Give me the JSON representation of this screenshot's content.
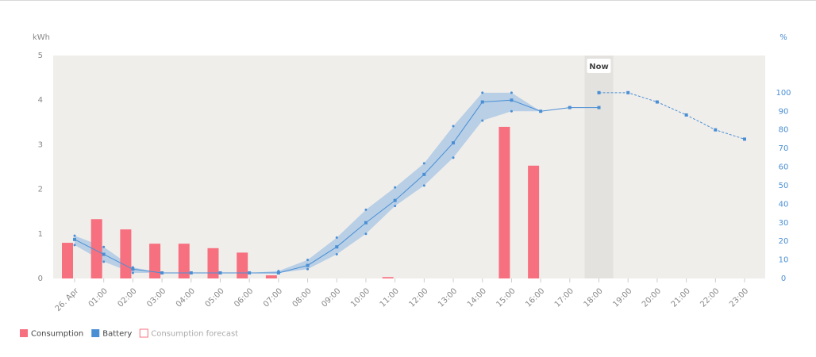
{
  "chart_data": {
    "type": "bar",
    "y_label": "kWh",
    "y2_label": "%",
    "annotation": "Now",
    "now_category": 18,
    "categories": [
      "26. Apr",
      "01:00",
      "02:00",
      "03:00",
      "04:00",
      "05:00",
      "06:00",
      "07:00",
      "08:00",
      "09:00",
      "10:00",
      "11:00",
      "12:00",
      "13:00",
      "14:00",
      "15:00",
      "16:00",
      "17:00",
      "18:00",
      "19:00",
      "20:00",
      "21:00",
      "22:00",
      "23:00"
    ],
    "series": [
      {
        "name": "Consumption",
        "color": "#f7707f",
        "type": "bar",
        "values": [
          0.8,
          1.33,
          1.1,
          0.78,
          0.78,
          0.68,
          0.58,
          0.07,
          null,
          null,
          null,
          0.03,
          null,
          null,
          null,
          3.4,
          2.53,
          null,
          null,
          null,
          null,
          null,
          null,
          null
        ]
      },
      {
        "name": "Battery",
        "color": "#4a8fd4",
        "type": "line",
        "axis": "y2",
        "values": [
          21,
          13,
          5,
          3,
          3,
          3,
          3,
          3,
          7,
          17,
          30,
          42,
          56,
          73,
          95,
          96,
          90,
          92,
          92,
          null,
          null,
          null,
          null,
          null
        ]
      },
      {
        "name": "Consumption forecast",
        "color": "#f7707f",
        "type": "hollow-bar",
        "values": [
          null,
          null,
          null,
          null,
          null,
          null,
          null,
          null,
          null,
          null,
          null,
          null,
          null,
          null,
          null,
          null,
          null,
          null,
          null,
          null,
          null,
          null,
          null,
          null
        ]
      }
    ],
    "battery_range": {
      "color": "#b8cfe6",
      "upper": [
        23,
        17,
        6,
        3,
        3,
        3,
        3,
        4,
        10,
        22,
        37,
        49,
        62,
        82,
        100,
        100,
        90,
        92
      ],
      "lower": [
        18,
        9,
        3,
        3,
        3,
        3,
        3,
        3,
        5,
        13,
        24,
        39,
        50,
        65,
        85,
        90,
        90,
        92
      ]
    },
    "battery_forecast": {
      "color": "#4a8fd4",
      "values": [
        null,
        null,
        null,
        null,
        null,
        null,
        null,
        null,
        null,
        null,
        null,
        null,
        null,
        null,
        null,
        null,
        null,
        null,
        100,
        100,
        95,
        88,
        80,
        75
      ]
    },
    "ylim": [
      0,
      5
    ],
    "yticks": [
      0,
      1,
      2,
      3,
      4,
      5
    ],
    "y2lim": [
      0,
      120
    ],
    "y2ticks": [
      0,
      10,
      20,
      30,
      40,
      50,
      60,
      70,
      80,
      90,
      100
    ]
  }
}
